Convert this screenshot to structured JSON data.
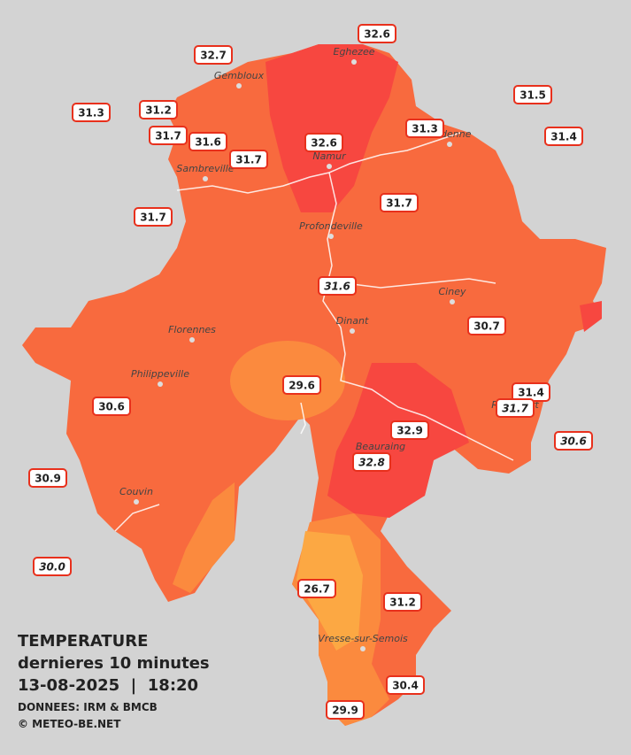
{
  "cities": [
    "Eghezee",
    "Gembloux",
    "Andenne",
    "Namur",
    "Sambreville",
    "Profondeville",
    "Ciney",
    "Dinant",
    "Florennes",
    "Philippeville",
    "Rochefort",
    "Beauraing",
    "Couvin",
    "Vresse-sur-Semois"
  ],
  "stations": [
    "32.6",
    "32.7",
    "31.3",
    "31.2",
    "31.7",
    "31.6",
    "31.7",
    "32.6",
    "31.3",
    "31.5",
    "31.4",
    "31.7",
    "31.7",
    "31.6",
    "30.7",
    "29.6",
    "30.6",
    "31.4",
    "31.7",
    "32.9",
    "30.6",
    "32.8",
    "30.9",
    "30.0",
    "26.7",
    "31.2",
    "30.4",
    "29.9"
  ],
  "caption": {
    "title": "TEMPERATURE",
    "subtitle": "dernieres 10 minutes",
    "datetime": "13-08-2025  |  18:20",
    "source": "DONNEES: IRM & BMCB",
    "credit": "© METEO-BE.NET"
  }
}
